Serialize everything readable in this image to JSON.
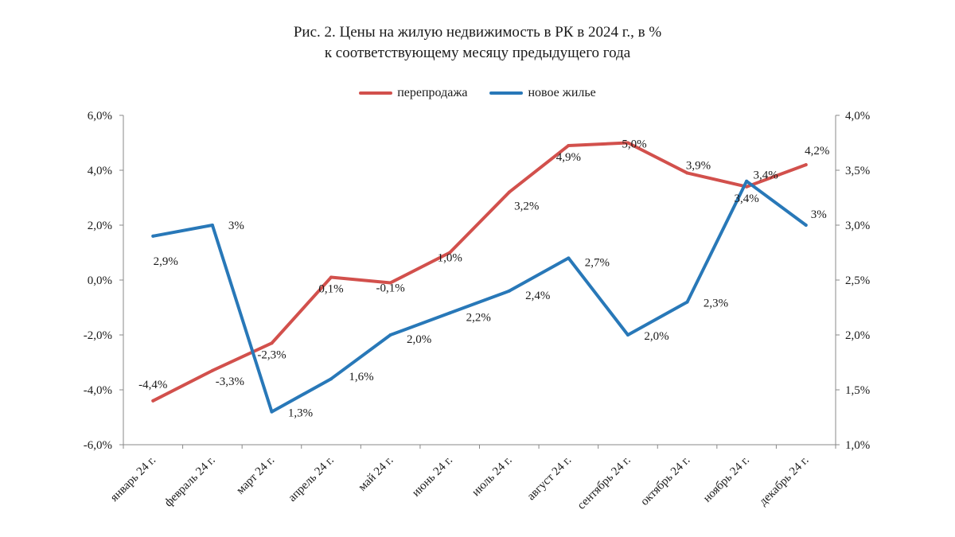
{
  "title": {
    "line1": "Рис. 2. Цены на жилую недвижимость в РК в 2024 г., в %",
    "line2": "к соответствующему месяцу предыдущего года"
  },
  "colors": {
    "resale": "#d2504c",
    "new": "#2878b8",
    "axis": "#888888"
  },
  "chart_data": {
    "type": "line",
    "categories": [
      "январь 24 г.",
      "февраль 24 г.",
      "март 24 г.",
      "апрель 24 г.",
      "май 24 г.",
      "июнь 24 г.",
      "июль 24 г.",
      "август 24 г.",
      "сентябрь 24 г.",
      "октябрь 24 г.",
      "ноябрь 24 г.",
      "декабрь 24 г."
    ],
    "y_left": {
      "ylim": [
        -6,
        6
      ],
      "ticks": [
        "-6,0%",
        "-4,0%",
        "-2,0%",
        "0,0%",
        "2,0%",
        "4,0%",
        "6,0%"
      ]
    },
    "y_right": {
      "ylim": [
        1,
        4
      ],
      "ticks": [
        "1,0%",
        "1,5%",
        "2,0%",
        "2,5%",
        "3,0%",
        "3,5%",
        "4,0%"
      ]
    },
    "legend_position": "top-center",
    "grid": false,
    "series": [
      {
        "name": "перепродажа",
        "axis": "left",
        "values": [
          -4.4,
          -3.3,
          -2.3,
          0.1,
          -0.1,
          1.0,
          3.2,
          4.9,
          5.0,
          3.9,
          3.4,
          4.2
        ],
        "labels": [
          "-4,4%",
          "-3,3%",
          "-2,3%",
          "0,1%",
          "-0,1%",
          "1,0%",
          "3,2%",
          "4,9%",
          "5,0%",
          "3,9%",
          "3,4%",
          "4,2%"
        ]
      },
      {
        "name": "новое жилье",
        "axis": "right",
        "values": [
          2.9,
          3.0,
          1.3,
          1.6,
          2.0,
          2.2,
          2.4,
          2.7,
          2.0,
          2.3,
          3.4,
          3.0
        ],
        "labels": [
          "2,9%",
          "3%",
          "1,3%",
          "1,6%",
          "2,0%",
          "2,2%",
          "2,4%",
          "2,7%",
          "2,0%",
          "2,3%",
          "3,4%",
          "3%"
        ]
      }
    ]
  }
}
